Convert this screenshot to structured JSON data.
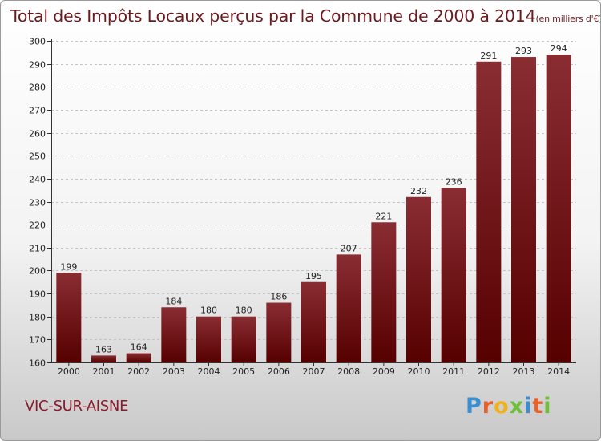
{
  "title": "Total des Impôts Locaux perçus par la Commune de 2000 à 2014",
  "title_unit": "(en milliers d'€)",
  "commune": "VIC-SUR-AISNE",
  "brand": "Proxiti",
  "chart_data": {
    "type": "bar",
    "title": "Total des Impôts Locaux perçus par la Commune de 2000 à 2014",
    "unit": "en milliers d'€",
    "xlabel": "",
    "ylabel": "",
    "categories": [
      "2000",
      "2001",
      "2002",
      "2003",
      "2004",
      "2005",
      "2006",
      "2007",
      "2008",
      "2009",
      "2010",
      "2011",
      "2012",
      "2013",
      "2014"
    ],
    "values": [
      199,
      163,
      164,
      184,
      180,
      180,
      186,
      195,
      207,
      221,
      232,
      236,
      291,
      293,
      294
    ],
    "ylim": [
      160,
      300
    ],
    "ytick_step": 10,
    "grid": true,
    "bar_color_top": "#8a2d33",
    "bar_color_bottom": "#560000"
  }
}
